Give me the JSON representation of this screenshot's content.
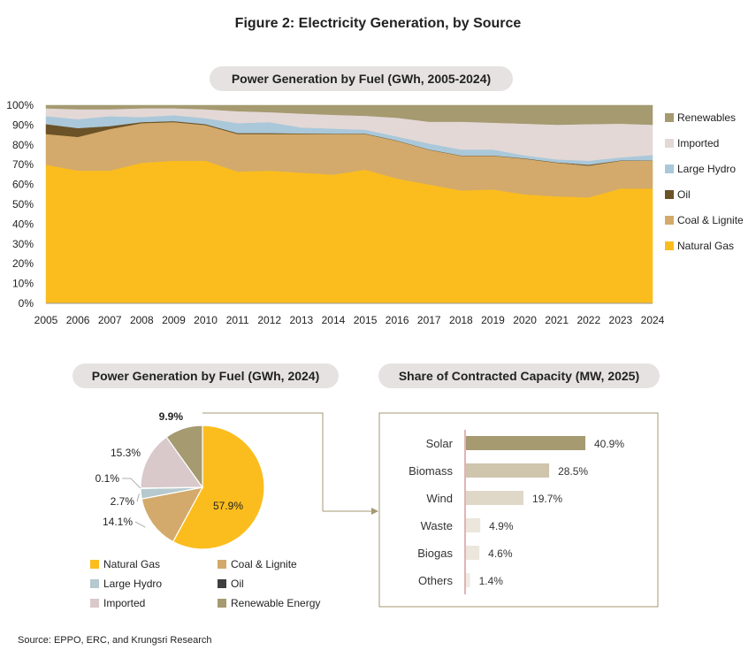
{
  "figure_title": "Figure 2: Electricity Generation, by Source",
  "source": "Source: EPPO, ERC, and Krungsri Research",
  "colors": {
    "natural_gas": "#fbbd1e",
    "coal": "#d3aa6b",
    "oil": "#6b5227",
    "large_hydro": "#aac8da",
    "imported": "#e3d8d6",
    "renewables": "#a59a70",
    "pie_hydro": "#b5c9ce",
    "pie_oil": "#3f3f3f",
    "pie_imported": "#d9c9cb",
    "pill": "#e6e2e2",
    "bar_outline": "#a59a70",
    "bar_axis": "#c06a6a"
  },
  "chart_data": [
    {
      "type": "area",
      "title": "Power Generation by Fuel (GWh, 2005-2024)",
      "x": [
        "2005",
        "2006",
        "2007",
        "2008",
        "2009",
        "2010",
        "2011",
        "2012",
        "2013",
        "2014",
        "2015",
        "2016",
        "2017",
        "2018",
        "2019",
        "2020",
        "2021",
        "2022",
        "2023",
        "2024"
      ],
      "y_ticks": [
        "0%",
        "10%",
        "20%",
        "30%",
        "40%",
        "50%",
        "60%",
        "70%",
        "80%",
        "90%",
        "100%"
      ],
      "ylim": [
        0,
        100
      ],
      "stacked": true,
      "legend_position": "right",
      "series": [
        {
          "name": "Natural Gas",
          "key": "natural_gas",
          "values": [
            70,
            67,
            67,
            71,
            72,
            72,
            66.5,
            67,
            66,
            65,
            67.5,
            63,
            60,
            57,
            57.5,
            55,
            54,
            53.5,
            58,
            58
          ]
        },
        {
          "name": "Coal & Lignite",
          "key": "coal",
          "values": [
            15.5,
            17,
            21,
            20,
            19.5,
            18,
            19,
            18.5,
            19.5,
            20.5,
            18,
            19,
            17.5,
            17.5,
            17,
            18,
            17,
            16,
            14,
            14.1
          ]
        },
        {
          "name": "Oil",
          "key": "oil",
          "values": [
            5,
            4.5,
            1.5,
            0.5,
            0.5,
            0.5,
            0.5,
            0.5,
            0.3,
            0.2,
            0.2,
            0.2,
            0.2,
            0.2,
            0.2,
            0.2,
            0.2,
            0.5,
            0.2,
            0.1
          ]
        },
        {
          "name": "Large Hydro",
          "key": "large_hydro",
          "values": [
            4,
            4.5,
            5,
            2.5,
            3,
            3,
            5,
            5.5,
            3,
            2.5,
            2,
            2,
            3,
            3,
            3,
            1.5,
            1.5,
            2,
            1.5,
            2.7
          ]
        },
        {
          "name": "Imported",
          "key": "imported",
          "values": [
            4,
            5,
            3.5,
            4.5,
            3.5,
            4.5,
            6,
            5,
            7,
            7,
            7,
            9.5,
            11,
            14,
            13.5,
            16,
            17.5,
            18.5,
            17,
            15.3
          ]
        },
        {
          "name": "Renewables",
          "key": "renewables",
          "values": [
            1.5,
            2,
            2,
            1.5,
            1.5,
            2,
            3,
            3.5,
            4.2,
            4.8,
            5.3,
            6.3,
            8.3,
            8.3,
            8.8,
            9.3,
            9.8,
            9.5,
            9.3,
            9.8
          ]
        }
      ],
      "legend_order": [
        "Renewables",
        "Imported",
        "Large Hydro",
        "Oil",
        "Coal & Lignite",
        "Natural Gas"
      ]
    },
    {
      "type": "pie",
      "title": "Power Generation by Fuel (GWh, 2024)",
      "slices": [
        {
          "name": "Natural Gas",
          "key": "natural_gas",
          "value": 57.9,
          "label": "57.9%"
        },
        {
          "name": "Coal & Lignite",
          "key": "coal",
          "value": 14.1,
          "label": "14.1%"
        },
        {
          "name": "Large Hydro",
          "key": "pie_hydro",
          "value": 2.7,
          "label": "2.7%"
        },
        {
          "name": "Oil",
          "key": "pie_oil",
          "value": 0.1,
          "label": "0.1%"
        },
        {
          "name": "Imported",
          "key": "pie_imported",
          "value": 15.3,
          "label": "15.3%"
        },
        {
          "name": "Renewable Energy",
          "key": "renewables",
          "value": 9.9,
          "label": "9.9%"
        }
      ]
    },
    {
      "type": "bar",
      "orientation": "horizontal",
      "title": "Share of Contracted Capacity (MW, 2025)",
      "categories": [
        "Solar",
        "Biomass",
        "Wind",
        "Waste",
        "Biogas",
        "Others"
      ],
      "values": [
        40.9,
        28.5,
        19.7,
        4.9,
        4.6,
        1.4
      ],
      "labels": [
        "40.9%",
        "28.5%",
        "19.7%",
        "4.9%",
        "4.6%",
        "1.4%"
      ],
      "bar_colors": [
        "#a59a70",
        "#cfc5ad",
        "#dfd8c9",
        "#ebe7dd",
        "#ebe7dd",
        "#efebe4"
      ]
    }
  ]
}
